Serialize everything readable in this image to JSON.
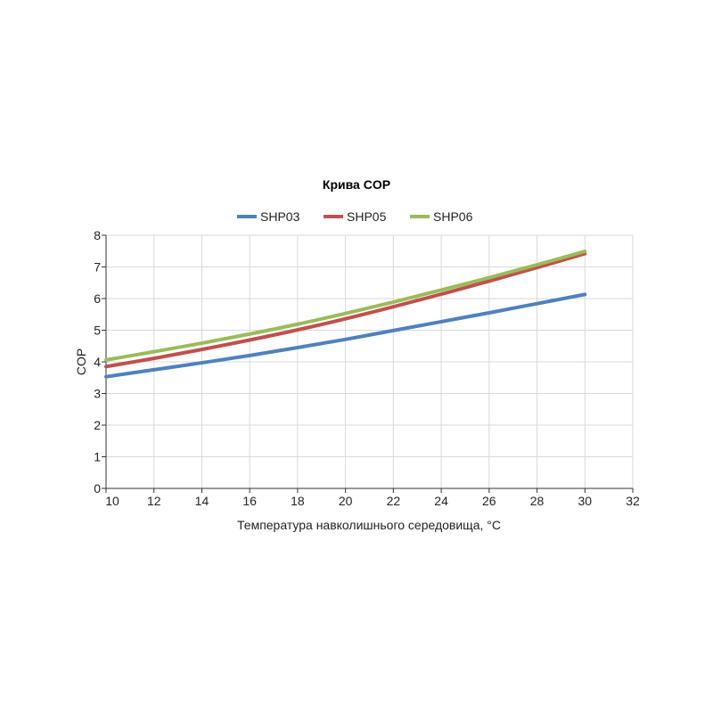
{
  "chart_data": {
    "type": "line",
    "title": "Крива COP",
    "xlabel": "Температура навколишнього середовища, °C",
    "ylabel": "COP",
    "xlim": [
      10,
      32
    ],
    "ylim": [
      0,
      8
    ],
    "xticks": [
      "10",
      "12",
      "14",
      "16",
      "18",
      "20",
      "22",
      "24",
      "26",
      "28",
      "30",
      "32"
    ],
    "yticks": [
      "0",
      "1",
      "2",
      "3",
      "4",
      "5",
      "6",
      "7",
      "8"
    ],
    "grid": true,
    "legend_position": "top-center",
    "x": [
      10,
      12,
      14,
      16,
      18,
      20,
      22,
      24,
      26,
      28,
      30
    ],
    "series": [
      {
        "name": "SHP03",
        "color": "#4f81bd",
        "values": [
          3.53,
          3.75,
          3.97,
          4.2,
          4.45,
          4.71,
          4.99,
          5.27,
          5.55,
          5.84,
          6.13
        ]
      },
      {
        "name": "SHP05",
        "color": "#c0504d",
        "values": [
          3.85,
          4.11,
          4.39,
          4.69,
          5.01,
          5.36,
          5.74,
          6.14,
          6.55,
          6.98,
          7.42
        ]
      },
      {
        "name": "SHP06",
        "color": "#9bbb59",
        "values": [
          4.06,
          4.32,
          4.59,
          4.88,
          5.19,
          5.53,
          5.89,
          6.27,
          6.66,
          7.07,
          7.49
        ]
      }
    ]
  }
}
